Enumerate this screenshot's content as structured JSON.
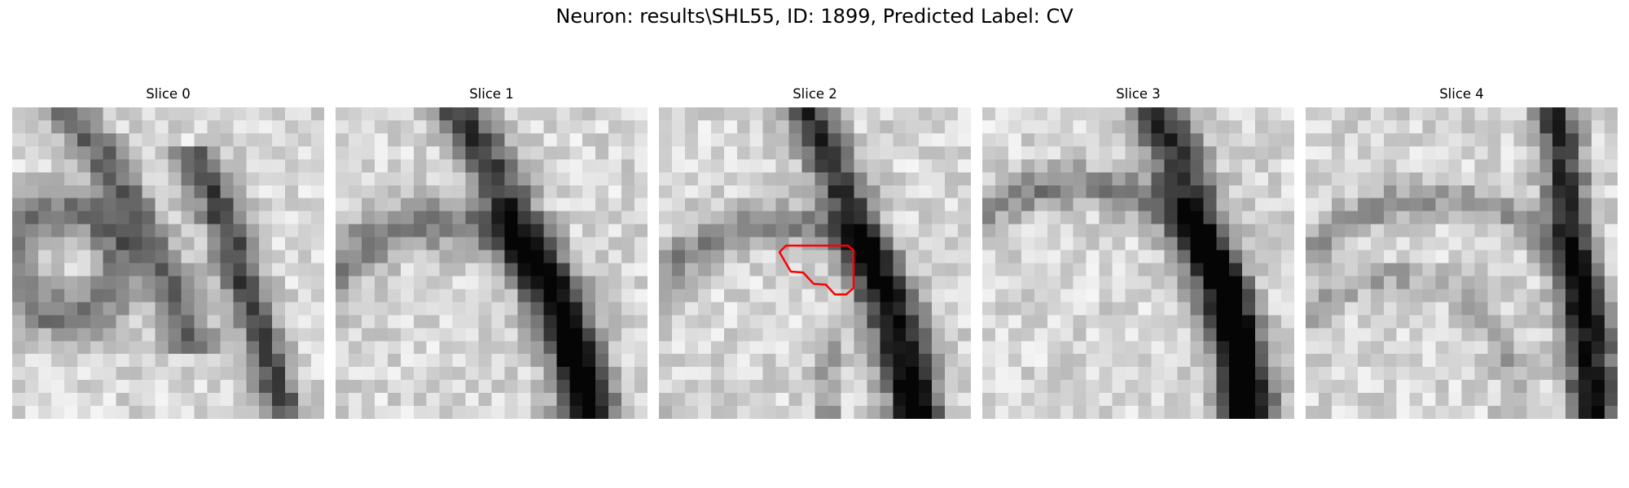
{
  "figure": {
    "title": "Neuron: results\\SHL55, ID: 1899, Predicted Label: CV"
  },
  "panels": [
    {
      "title": "Slice 0",
      "seed": 11,
      "image_description": "grayscale EM micrograph crop"
    },
    {
      "title": "Slice 1",
      "seed": 23,
      "image_description": "grayscale EM micrograph crop"
    },
    {
      "title": "Slice 2",
      "seed": 37,
      "image_description": "grayscale EM micrograph crop"
    },
    {
      "title": "Slice 3",
      "seed": 51,
      "image_description": "grayscale EM micrograph crop"
    },
    {
      "title": "Slice 4",
      "seed": 67,
      "image_description": "grayscale EM micrograph crop"
    }
  ],
  "annotation": {
    "panel_index": 2,
    "color": "#ff0000"
  }
}
